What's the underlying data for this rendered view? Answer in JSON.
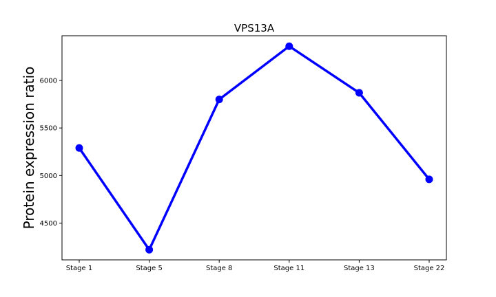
{
  "chart_data": {
    "type": "line",
    "title": "VPS13A",
    "xlabel": "",
    "ylabel": "Protein expression ratio",
    "categories": [
      "Stage 1",
      "Stage 5",
      "Stage 8",
      "Stage 11",
      "Stage 13",
      "Stage 22"
    ],
    "series": [
      {
        "values": [
          5290,
          4220,
          5800,
          6360,
          5870,
          4960
        ]
      }
    ],
    "yticks": [
      4500,
      5000,
      5500,
      6000
    ],
    "ylim": [
      4113,
      6470
    ],
    "grid": false,
    "line_color": "#0000ff",
    "marker": "circle"
  }
}
